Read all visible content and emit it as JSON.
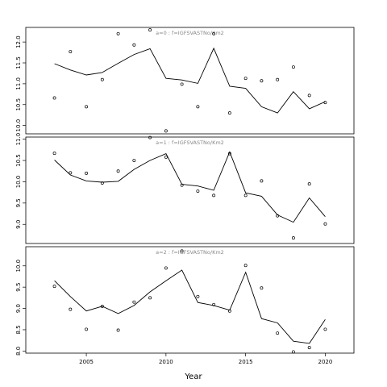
{
  "chart_data": {
    "type": "line",
    "xlabel": "Year",
    "xlim": [
      2001.2,
      2021.8
    ],
    "x_ticks": [
      2005,
      2010,
      2015,
      2020
    ],
    "panels": [
      {
        "label": "a=0 : f=IGFSVASTNo/Km2",
        "ylim": [
          9.8,
          12.35
        ],
        "y_ticks": [
          10.0,
          10.5,
          11.0,
          11.5,
          12.0
        ],
        "y_tick_labels": [
          "10.0",
          "10.5",
          "11.0",
          "11.5",
          "12.0"
        ],
        "fitted": {
          "x": [
            2003,
            2004,
            2005,
            2006,
            2007,
            2008,
            2009,
            2010,
            2011,
            2012,
            2013,
            2014,
            2015,
            2016,
            2017,
            2018,
            2019,
            2020
          ],
          "y": [
            11.48,
            11.33,
            11.21,
            11.27,
            11.49,
            11.7,
            11.84,
            11.13,
            11.09,
            11.01,
            11.85,
            10.94,
            10.89,
            10.45,
            10.3,
            10.81,
            10.4,
            10.57
          ]
        },
        "observed": {
          "x": [
            2003,
            2004,
            2005,
            2006,
            2007,
            2008,
            2009,
            2010,
            2011,
            2012,
            2013,
            2014,
            2015,
            2016,
            2017,
            2018,
            2019,
            2020
          ],
          "y": [
            10.66,
            11.77,
            10.45,
            11.1,
            12.2,
            11.93,
            12.29,
            9.87,
            10.99,
            10.45,
            12.2,
            10.3,
            11.13,
            11.07,
            11.1,
            11.4,
            10.72,
            10.55
          ]
        }
      },
      {
        "label": "a=1 : f=IGFSVASTNo/Km2",
        "ylim": [
          8.55,
          11.05
        ],
        "y_ticks": [
          9.0,
          9.5,
          10.0,
          10.5,
          11.0
        ],
        "y_tick_labels": [
          "9.0",
          "9.5",
          "10.0",
          "10.5",
          "11.0"
        ],
        "fitted": {
          "x": [
            2003,
            2004,
            2005,
            2006,
            2007,
            2008,
            2009,
            2010,
            2011,
            2012,
            2013,
            2014,
            2015,
            2016,
            2017,
            2018,
            2019,
            2020
          ],
          "y": [
            10.51,
            10.16,
            10.02,
            9.99,
            10.01,
            10.29,
            10.5,
            10.66,
            9.94,
            9.9,
            9.8,
            10.7,
            9.74,
            9.66,
            9.22,
            9.05,
            9.62,
            9.18
          ]
        },
        "observed": {
          "x": [
            2003,
            2004,
            2005,
            2006,
            2007,
            2008,
            2009,
            2010,
            2011,
            2012,
            2013,
            2014,
            2015,
            2016,
            2017,
            2018,
            2019,
            2020
          ],
          "y": [
            10.67,
            10.21,
            10.2,
            9.97,
            10.25,
            10.5,
            11.04,
            10.58,
            9.92,
            9.78,
            9.68,
            10.66,
            9.68,
            10.02,
            9.2,
            8.68,
            9.95,
            9.01
          ]
        }
      },
      {
        "label": "a=2 : f=IGFSVASTNo/Km2",
        "ylim": [
          7.95,
          10.45
        ],
        "y_ticks": [
          8.0,
          8.5,
          9.0,
          9.5,
          10.0
        ],
        "y_tick_labels": [
          "8.0",
          "8.5",
          "9.0",
          "9.5",
          "10.0"
        ],
        "fitted": {
          "x": [
            2003,
            2004,
            2005,
            2006,
            2007,
            2008,
            2009,
            2010,
            2011,
            2012,
            2013,
            2014,
            2015,
            2016,
            2017,
            2018,
            2019,
            2020
          ],
          "y": [
            9.65,
            9.28,
            8.94,
            9.05,
            8.88,
            9.07,
            9.39,
            9.65,
            9.9,
            9.14,
            9.07,
            8.96,
            9.85,
            8.76,
            8.66,
            8.23,
            8.18,
            8.74
          ]
        },
        "observed": {
          "x": [
            2003,
            2004,
            2005,
            2006,
            2007,
            2008,
            2009,
            2010,
            2011,
            2012,
            2013,
            2014,
            2015,
            2016,
            2017,
            2018,
            2019,
            2020
          ],
          "y": [
            9.52,
            8.98,
            8.51,
            9.05,
            8.49,
            9.15,
            9.25,
            9.95,
            10.35,
            9.28,
            9.09,
            8.94,
            10.01,
            9.48,
            8.42,
            7.98,
            8.08,
            8.51
          ]
        }
      }
    ]
  }
}
